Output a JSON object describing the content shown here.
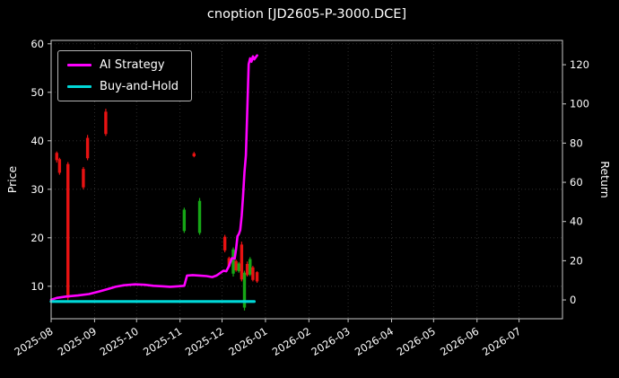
{
  "chart_data": {
    "type": "line+candlestick",
    "title": "cnoption [JD2605-P-3000.DCE]",
    "ylabel": "Price",
    "ylabel_right": "Return",
    "grid": "dotted",
    "legend_position": "upper-left",
    "xlim": [
      "2025-08-01",
      "2026-08-01"
    ],
    "price_ylim": [
      3.3,
      60.7
    ],
    "return_ylim": [
      -9.6,
      132.4
    ],
    "price_ticks": [
      10,
      20,
      30,
      40,
      50,
      60
    ],
    "return_ticks": [
      0,
      20,
      40,
      60,
      80,
      100,
      120
    ],
    "x_ticks": [
      "2025-08",
      "2025-09",
      "2025-10",
      "2025-11",
      "2025-12",
      "2026-01",
      "2026-02",
      "2026-03",
      "2026-04",
      "2026-05",
      "2026-06",
      "2026-07"
    ],
    "legend": [
      {
        "label": "AI Strategy",
        "color": "#ff00ff"
      },
      {
        "label": "Buy-and-Hold",
        "color": "#00d8d8"
      }
    ],
    "series": [
      {
        "name": "AI Strategy",
        "type": "line",
        "color": "#ff00ff",
        "width": 2.6,
        "axis": "price",
        "points": [
          [
            "2025-08-01",
            7.2
          ],
          [
            "2025-08-05",
            7.6
          ],
          [
            "2025-08-12",
            7.9
          ],
          [
            "2025-08-20",
            8.1
          ],
          [
            "2025-08-28",
            8.4
          ],
          [
            "2025-09-04",
            8.9
          ],
          [
            "2025-09-10",
            9.4
          ],
          [
            "2025-09-16",
            9.9
          ],
          [
            "2025-09-22",
            10.2
          ],
          [
            "2025-09-30",
            10.4
          ],
          [
            "2025-10-07",
            10.3
          ],
          [
            "2025-10-13",
            10.1
          ],
          [
            "2025-10-19",
            10.0
          ],
          [
            "2025-10-25",
            9.9
          ],
          [
            "2025-10-31",
            10.0
          ],
          [
            "2025-11-04",
            10.1
          ],
          [
            "2025-11-06",
            12.2
          ],
          [
            "2025-11-10",
            12.3
          ],
          [
            "2025-11-15",
            12.2
          ],
          [
            "2025-11-20",
            12.1
          ],
          [
            "2025-11-24",
            11.9
          ],
          [
            "2025-11-27",
            12.2
          ],
          [
            "2025-11-30",
            12.8
          ],
          [
            "2025-12-02",
            13.2
          ],
          [
            "2025-12-04",
            13.1
          ],
          [
            "2025-12-06",
            14.2
          ],
          [
            "2025-12-08",
            15.8
          ],
          [
            "2025-12-10",
            15.7
          ],
          [
            "2025-12-11",
            17.6
          ],
          [
            "2025-12-12",
            20.3
          ],
          [
            "2025-12-13",
            20.8
          ],
          [
            "2025-12-14",
            21.6
          ],
          [
            "2025-12-15",
            24.5
          ],
          [
            "2025-12-16",
            28.5
          ],
          [
            "2025-12-17",
            33.5
          ],
          [
            "2025-12-18",
            37.0
          ],
          [
            "2025-12-19",
            46.0
          ],
          [
            "2025-12-20",
            55.8
          ],
          [
            "2025-12-21",
            57.0
          ],
          [
            "2025-12-22",
            56.3
          ],
          [
            "2025-12-23",
            57.4
          ],
          [
            "2025-12-24",
            56.8
          ],
          [
            "2025-12-26",
            57.6
          ]
        ]
      },
      {
        "name": "Buy-and-Hold",
        "type": "line",
        "color": "#00d8d8",
        "width": 3.2,
        "axis": "price",
        "points": [
          [
            "2025-08-01",
            6.85
          ],
          [
            "2025-12-24",
            6.85
          ]
        ]
      }
    ],
    "candles": [
      {
        "d": "2025-08-05",
        "o": 37.5,
        "h": 37.8,
        "l": 35.5,
        "c": 36.0
      },
      {
        "d": "2025-08-07",
        "o": 36.2,
        "h": 36.5,
        "l": 33.0,
        "c": 33.4
      },
      {
        "d": "2025-08-13",
        "o": 35.2,
        "h": 35.6,
        "l": 7.0,
        "c": 7.6
      },
      {
        "d": "2025-08-24",
        "o": 34.2,
        "h": 34.6,
        "l": 30.0,
        "c": 30.4
      },
      {
        "d": "2025-08-27",
        "o": 40.6,
        "h": 41.2,
        "l": 36.0,
        "c": 36.4
      },
      {
        "d": "2025-09-09",
        "o": 46.0,
        "h": 46.6,
        "l": 41.0,
        "c": 41.4
      },
      {
        "d": "2025-11-04",
        "o": 21.4,
        "h": 26.2,
        "l": 21.0,
        "c": 25.8
      },
      {
        "d": "2025-11-11",
        "o": 37.4,
        "h": 37.7,
        "l": 36.6,
        "c": 36.8
      },
      {
        "d": "2025-11-15",
        "o": 21.0,
        "h": 28.2,
        "l": 20.6,
        "c": 27.6
      },
      {
        "d": "2025-12-03",
        "o": 20.2,
        "h": 20.6,
        "l": 17.0,
        "c": 17.4
      },
      {
        "d": "2025-12-06",
        "o": 15.8,
        "h": 16.1,
        "l": 13.8,
        "c": 14.1
      },
      {
        "d": "2025-12-09",
        "o": 12.6,
        "h": 18.0,
        "l": 12.0,
        "c": 17.6
      },
      {
        "d": "2025-12-11",
        "o": 15.2,
        "h": 15.5,
        "l": 13.0,
        "c": 13.3
      },
      {
        "d": "2025-12-13",
        "o": 13.1,
        "h": 15.0,
        "l": 12.8,
        "c": 14.7
      },
      {
        "d": "2025-12-15",
        "o": 18.6,
        "h": 19.2,
        "l": 11.0,
        "c": 11.4
      },
      {
        "d": "2025-12-17",
        "o": 5.6,
        "h": 13.2,
        "l": 5.0,
        "c": 12.8
      },
      {
        "d": "2025-12-19",
        "o": 14.6,
        "h": 15.1,
        "l": 12.0,
        "c": 12.3
      },
      {
        "d": "2025-12-21",
        "o": 12.4,
        "h": 16.0,
        "l": 12.1,
        "c": 15.6
      },
      {
        "d": "2025-12-23",
        "o": 13.9,
        "h": 14.2,
        "l": 11.0,
        "c": 11.3
      },
      {
        "d": "2025-12-26",
        "o": 12.9,
        "h": 13.1,
        "l": 10.7,
        "c": 11.0
      }
    ],
    "colors": {
      "up": "#16a616",
      "down": "#e81212",
      "background": "#000000",
      "text": "#ffffff",
      "grid": "#373737",
      "spine": "#c8c8c8"
    }
  }
}
